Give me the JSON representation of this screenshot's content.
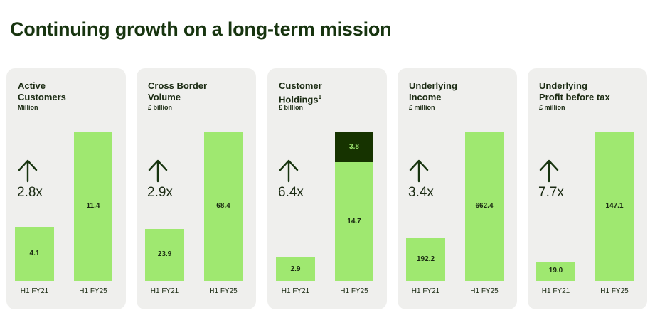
{
  "title": "Continuing growth on a long-term mission",
  "chart_data": [
    {
      "type": "bar",
      "title_lines": [
        "Active",
        "Customers"
      ],
      "unit": "Million",
      "multiplier": "2.8x",
      "categories": [
        "H1 FY21",
        "H1 FY25"
      ],
      "values": [
        4.1,
        11.4
      ],
      "labels": [
        "4.1",
        "11.4"
      ]
    },
    {
      "type": "bar",
      "title_lines": [
        "Cross Border",
        "Volume"
      ],
      "unit": "£ billion",
      "multiplier": "2.9x",
      "categories": [
        "H1 FY21",
        "H1 FY25"
      ],
      "values": [
        23.9,
        68.4
      ],
      "labels": [
        "23.9",
        "68.4"
      ]
    },
    {
      "type": "bar",
      "stacked": true,
      "title_lines": [
        "Customer",
        "Holdings"
      ],
      "title_sup": "1",
      "unit": "£ billion",
      "multiplier": "6.4x",
      "categories": [
        "H1 FY21",
        "H1 FY25"
      ],
      "values": [
        2.9,
        14.7
      ],
      "labels": [
        "2.9",
        "14.7"
      ],
      "stack_values": [
        0,
        3.8
      ],
      "stack_labels": [
        "",
        "3.8"
      ]
    },
    {
      "type": "bar",
      "title_lines": [
        "Underlying",
        "Income"
      ],
      "unit": "£ million",
      "multiplier": "3.4x",
      "categories": [
        "H1 FY21",
        "H1 FY25"
      ],
      "values": [
        192.2,
        662.4
      ],
      "labels": [
        "192.2",
        "662.4"
      ]
    },
    {
      "type": "bar",
      "title_lines": [
        "Underlying",
        "Profit before tax"
      ],
      "unit": "£ million",
      "multiplier": "7.7x",
      "categories": [
        "H1 FY21",
        "H1 FY25"
      ],
      "values": [
        19.0,
        147.1
      ],
      "labels": [
        "19.0",
        "147.1"
      ]
    }
  ],
  "colors": {
    "bar": "#9fe870",
    "stack": "#163300",
    "text": "#17340f",
    "card": "#efefed"
  },
  "icon": "up-arrow-icon"
}
